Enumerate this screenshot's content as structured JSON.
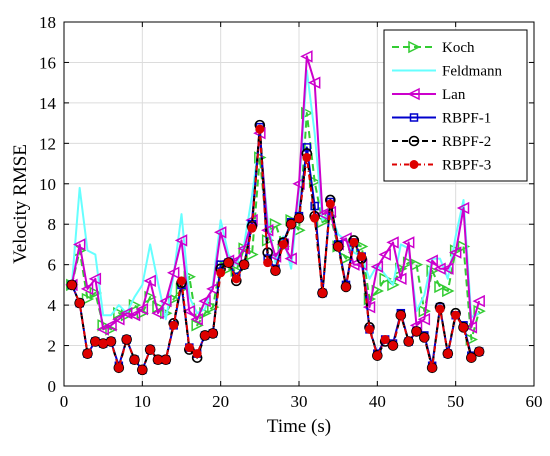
{
  "chart_data": {
    "type": "line",
    "title": "",
    "xlabel": "Time (s)",
    "ylabel": "Velocity RMSE",
    "xlim": [
      0,
      60
    ],
    "ylim": [
      0,
      18
    ],
    "xticks": [
      0,
      10,
      20,
      30,
      40,
      50,
      60
    ],
    "yticks": [
      0,
      2,
      4,
      6,
      8,
      10,
      12,
      14,
      16,
      18
    ],
    "grid": true,
    "legend_position": "top-right",
    "x": [
      1,
      2,
      3,
      4,
      5,
      6,
      7,
      8,
      9,
      10,
      11,
      12,
      13,
      14,
      15,
      16,
      17,
      18,
      19,
      20,
      21,
      22,
      23,
      24,
      25,
      26,
      27,
      28,
      29,
      30,
      31,
      32,
      33,
      34,
      35,
      36,
      37,
      38,
      39,
      40,
      41,
      42,
      43,
      44,
      45,
      46,
      47,
      48,
      49,
      50,
      51,
      52,
      53
    ],
    "series": [
      {
        "name": "Koch",
        "color": "#33cc33",
        "dash": "7,4",
        "marker": "triangle-right",
        "values": [
          5.0,
          6.7,
          4.3,
          4.6,
          3.0,
          2.8,
          3.6,
          3.5,
          4.0,
          3.6,
          4.4,
          3.9,
          3.6,
          4.3,
          4.8,
          5.4,
          3.0,
          3.6,
          3.9,
          6.0,
          5.8,
          5.7,
          6.8,
          6.5,
          11.3,
          7.2,
          8.0,
          6.9,
          8.2,
          7.7,
          13.5,
          10.1,
          8.1,
          8.4,
          6.9,
          6.3,
          7.0,
          6.9,
          4.3,
          4.7,
          5.3,
          5.0,
          5.8,
          6.1,
          6.0,
          3.7,
          5.7,
          4.9,
          4.7,
          6.7,
          6.9,
          2.3,
          3.7
        ]
      },
      {
        "name": "Feldmann",
        "color": "#66ffff",
        "dash": "",
        "marker": "none",
        "values": [
          5.0,
          9.8,
          6.7,
          6.5,
          3.5,
          3.5,
          4.0,
          3.6,
          4.4,
          5.0,
          7.0,
          5.1,
          3.3,
          5.5,
          8.5,
          4.4,
          3.6,
          3.8,
          5.0,
          8.2,
          6.5,
          6.0,
          7.0,
          9.4,
          12.3,
          8.2,
          6.1,
          7.4,
          5.8,
          9.7,
          15.6,
          12.5,
          8.2,
          8.6,
          7.5,
          7.2,
          6.6,
          6.4,
          5.3,
          6.0,
          5.5,
          5.0,
          7.0,
          6.8,
          3.7,
          4.5,
          6.3,
          6.3,
          5.3,
          7.4,
          9.2,
          3.4,
          3.6
        ]
      },
      {
        "name": "Lan",
        "color": "#cc00cc",
        "dash": "",
        "marker": "triangle-left",
        "values": [
          5.0,
          7.0,
          4.8,
          5.3,
          2.8,
          3.0,
          3.3,
          3.6,
          3.5,
          3.8,
          5.2,
          3.6,
          4.2,
          5.6,
          7.2,
          3.7,
          3.3,
          4.2,
          4.8,
          7.6,
          6.2,
          6.2,
          6.8,
          8.2,
          12.5,
          7.7,
          6.4,
          7.0,
          6.3,
          10.0,
          16.3,
          15.0,
          8.5,
          8.6,
          7.0,
          7.3,
          6.0,
          6.0,
          3.9,
          5.9,
          6.5,
          7.1,
          5.3,
          7.1,
          3.0,
          3.3,
          6.2,
          5.8,
          5.8,
          6.6,
          8.8,
          2.9,
          4.2
        ]
      },
      {
        "name": "RBPF-1",
        "color": "#0000cc",
        "dash": "",
        "marker": "square",
        "values": [
          5.0,
          4.1,
          1.6,
          2.2,
          2.1,
          2.2,
          1.0,
          2.3,
          1.3,
          0.8,
          1.8,
          1.3,
          1.3,
          3.0,
          5.0,
          1.9,
          1.6,
          2.5,
          2.6,
          6.0,
          6.1,
          5.4,
          6.0,
          8.0,
          12.8,
          6.3,
          5.8,
          7.1,
          8.1,
          8.4,
          11.8,
          8.9,
          4.6,
          9.1,
          7.0,
          5.0,
          7.1,
          6.4,
          2.8,
          1.6,
          2.3,
          2.1,
          3.6,
          2.2,
          2.7,
          2.5,
          1.0,
          3.9,
          1.6,
          3.5,
          3.0,
          1.5,
          1.7
        ]
      },
      {
        "name": "RBPF-2",
        "color": "#000000",
        "dash": "6,4",
        "marker": "circle",
        "values": [
          5.0,
          4.1,
          1.6,
          2.2,
          2.1,
          2.2,
          0.9,
          2.3,
          1.3,
          0.8,
          1.8,
          1.3,
          1.3,
          3.1,
          5.1,
          1.8,
          1.4,
          2.5,
          2.6,
          5.8,
          6.1,
          5.2,
          6.0,
          7.9,
          12.9,
          6.6,
          5.7,
          7.1,
          8.0,
          8.3,
          11.5,
          8.4,
          4.6,
          9.2,
          6.9,
          4.9,
          7.2,
          6.3,
          2.9,
          1.5,
          2.2,
          2.0,
          3.5,
          2.2,
          2.7,
          2.4,
          0.9,
          3.9,
          1.6,
          3.6,
          2.9,
          1.4,
          1.7
        ]
      },
      {
        "name": "RBPF-3",
        "color": "#dd0000",
        "dash": "5,3,1,3",
        "marker": "asterisk",
        "values": [
          5.0,
          4.1,
          1.6,
          2.2,
          2.1,
          2.2,
          0.9,
          2.3,
          1.3,
          0.8,
          1.8,
          1.3,
          1.3,
          3.0,
          5.2,
          1.9,
          1.6,
          2.5,
          2.6,
          5.6,
          6.1,
          5.3,
          6.0,
          7.8,
          12.7,
          6.1,
          5.7,
          7.0,
          8.0,
          8.3,
          11.3,
          8.3,
          4.6,
          9.0,
          6.9,
          4.9,
          7.1,
          6.4,
          2.8,
          1.5,
          2.3,
          2.0,
          3.5,
          2.2,
          2.7,
          2.4,
          0.9,
          3.8,
          1.6,
          3.5,
          2.9,
          1.4,
          1.7
        ]
      }
    ]
  }
}
